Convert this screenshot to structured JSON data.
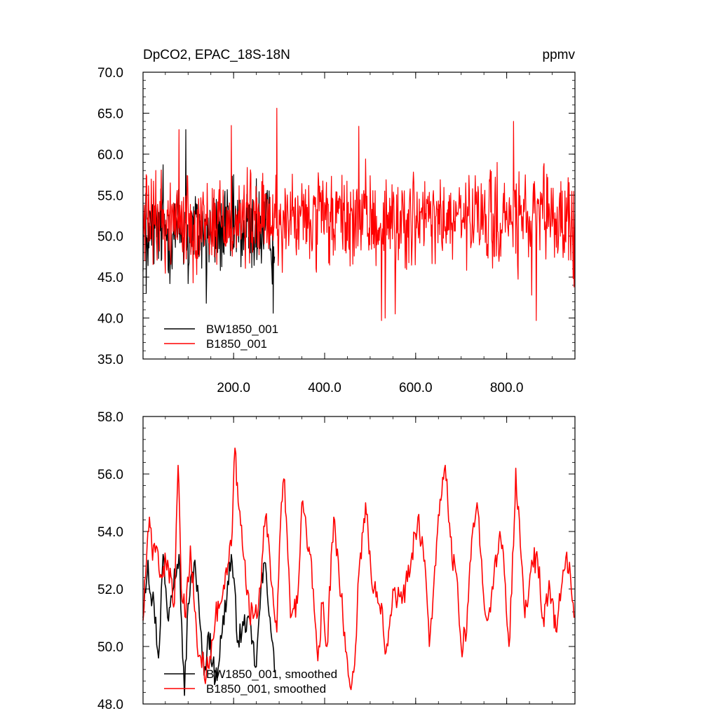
{
  "chart_data": [
    {
      "type": "line",
      "title": "DpCO2, EPAC_18S-18N",
      "units": "ppmv",
      "xlim": [
        1,
        950
      ],
      "ylim": [
        35,
        70
      ],
      "x_ticks": [
        200,
        400,
        600,
        800
      ],
      "x_tick_labels": [
        "200.0",
        "400.0",
        "600.0",
        "800.0"
      ],
      "y_ticks": [
        35,
        40,
        45,
        50,
        55,
        60,
        65,
        70
      ],
      "y_tick_labels": [
        "35.0",
        "40.0",
        "45.0",
        "50.0",
        "55.0",
        "60.0",
        "65.0",
        "70.0"
      ],
      "legend_position": "bottom-left",
      "series": [
        {
          "name": "BW1850_001",
          "color": "#000000",
          "x_range": [
            1,
            290
          ],
          "mean": 50.5,
          "spread": 3.5,
          "keypoints": [
            [
              8,
              43.0
            ],
            [
              45,
              58.7
            ],
            [
              95,
              63.0
            ],
            [
              100,
              44.2
            ],
            [
              140,
              41.8
            ],
            [
              200,
              57.5
            ],
            [
              250,
              57.0
            ],
            [
              287,
              40.6
            ],
            [
              290,
              47.5
            ]
          ]
        },
        {
          "name": "B1850_001",
          "color": "#ff0000",
          "x_range": [
            1,
            950
          ],
          "mean": 51.8,
          "spread": 3.6,
          "keypoints": [
            [
              5,
              47.0
            ],
            [
              8,
              57.5
            ],
            [
              80,
              63.0
            ],
            [
              195,
              63.5
            ],
            [
              295,
              65.6
            ],
            [
              475,
              63.4
            ],
            [
              525,
              39.7
            ],
            [
              533,
              40.0
            ],
            [
              555,
              40.5
            ],
            [
              815,
              64.0
            ],
            [
              855,
              42.8
            ],
            [
              865,
              39.7
            ],
            [
              948,
              43.8
            ]
          ]
        }
      ]
    },
    {
      "type": "line",
      "xlim": [
        1,
        950
      ],
      "ylim": [
        48,
        58
      ],
      "x_ticks": [
        200,
        400,
        600,
        800
      ],
      "y_ticks": [
        48,
        50,
        52,
        54,
        56,
        58
      ],
      "y_tick_labels": [
        "48.0",
        "50.0",
        "52.0",
        "54.0",
        "56.0",
        "58.0"
      ],
      "legend_position": "bottom-left",
      "series": [
        {
          "name": "BW1850_001, smoothed",
          "color": "#000000",
          "x_range": [
            1,
            290
          ],
          "values": [
            [
              1,
              51.0
            ],
            [
              5,
              52.0
            ],
            [
              12,
              53.0
            ],
            [
              18,
              51.8
            ],
            [
              25,
              51.5
            ],
            [
              35,
              49.6
            ],
            [
              45,
              53.2
            ],
            [
              55,
              51.0
            ],
            [
              70,
              52.7
            ],
            [
              80,
              53.2
            ],
            [
              92,
              48.3
            ],
            [
              100,
              51.5
            ],
            [
              115,
              53.0
            ],
            [
              125,
              51.0
            ],
            [
              135,
              49.0
            ],
            [
              145,
              50.5
            ],
            [
              160,
              48.8
            ],
            [
              175,
              50.5
            ],
            [
              195,
              53.2
            ],
            [
              210,
              50.2
            ],
            [
              230,
              51.0
            ],
            [
              250,
              49.3
            ],
            [
              260,
              52.0
            ],
            [
              270,
              52.9
            ],
            [
              280,
              51.0
            ],
            [
              290,
              49.1
            ]
          ]
        },
        {
          "name": "B1850_001, smoothed",
          "color": "#ff0000",
          "x_range": [
            1,
            950
          ],
          "values": [
            [
              1,
              50.9
            ],
            [
              10,
              53.5
            ],
            [
              15,
              54.5
            ],
            [
              22,
              53.0
            ],
            [
              30,
              53.5
            ],
            [
              40,
              52.5
            ],
            [
              55,
              53.0
            ],
            [
              70,
              51.5
            ],
            [
              78,
              56.3
            ],
            [
              85,
              52.0
            ],
            [
              95,
              51.0
            ],
            [
              105,
              53.5
            ],
            [
              120,
              50.0
            ],
            [
              140,
              49.0
            ],
            [
              160,
              51.0
            ],
            [
              180,
              52.0
            ],
            [
              195,
              53.5
            ],
            [
              203,
              56.9
            ],
            [
              210,
              55.0
            ],
            [
              225,
              53.0
            ],
            [
              235,
              51.0
            ],
            [
              255,
              51.5
            ],
            [
              270,
              54.5
            ],
            [
              280,
              53.0
            ],
            [
              295,
              50.5
            ],
            [
              305,
              55.0
            ],
            [
              312,
              55.8
            ],
            [
              325,
              51.0
            ],
            [
              340,
              51.5
            ],
            [
              350,
              55.0
            ],
            [
              360,
              54.0
            ],
            [
              375,
              52.0
            ],
            [
              385,
              49.5
            ],
            [
              395,
              51.5
            ],
            [
              405,
              50.0
            ],
            [
              420,
              54.5
            ],
            [
              430,
              53.0
            ],
            [
              440,
              51.0
            ],
            [
              452,
              49.0
            ],
            [
              458,
              48.5
            ],
            [
              468,
              50.0
            ],
            [
              475,
              52.5
            ],
            [
              490,
              55.0
            ],
            [
              505,
              52.0
            ],
            [
              525,
              51.5
            ],
            [
              535,
              49.8
            ],
            [
              550,
              52.0
            ],
            [
              570,
              51.5
            ],
            [
              590,
              53.0
            ],
            [
              605,
              54.5
            ],
            [
              620,
              53.0
            ],
            [
              630,
              50.0
            ],
            [
              648,
              54.0
            ],
            [
              665,
              56.3
            ],
            [
              680,
              53.0
            ],
            [
              690,
              52.5
            ],
            [
              700,
              50.0
            ],
            [
              712,
              50.5
            ],
            [
              725,
              54.0
            ],
            [
              735,
              55.0
            ],
            [
              745,
              53.0
            ],
            [
              755,
              51.0
            ],
            [
              770,
              52.0
            ],
            [
              785,
              54.0
            ],
            [
              795,
              52.5
            ],
            [
              805,
              50.0
            ],
            [
              815,
              53.5
            ],
            [
              820,
              56.2
            ],
            [
              830,
              53.5
            ],
            [
              840,
              51.0
            ],
            [
              855,
              53.0
            ],
            [
              868,
              53.0
            ],
            [
              880,
              51.0
            ],
            [
              895,
              52.0
            ],
            [
              910,
              50.5
            ],
            [
              920,
              52.0
            ],
            [
              930,
              53.1
            ],
            [
              940,
              52.5
            ],
            [
              948,
              51.0
            ]
          ]
        }
      ]
    }
  ]
}
